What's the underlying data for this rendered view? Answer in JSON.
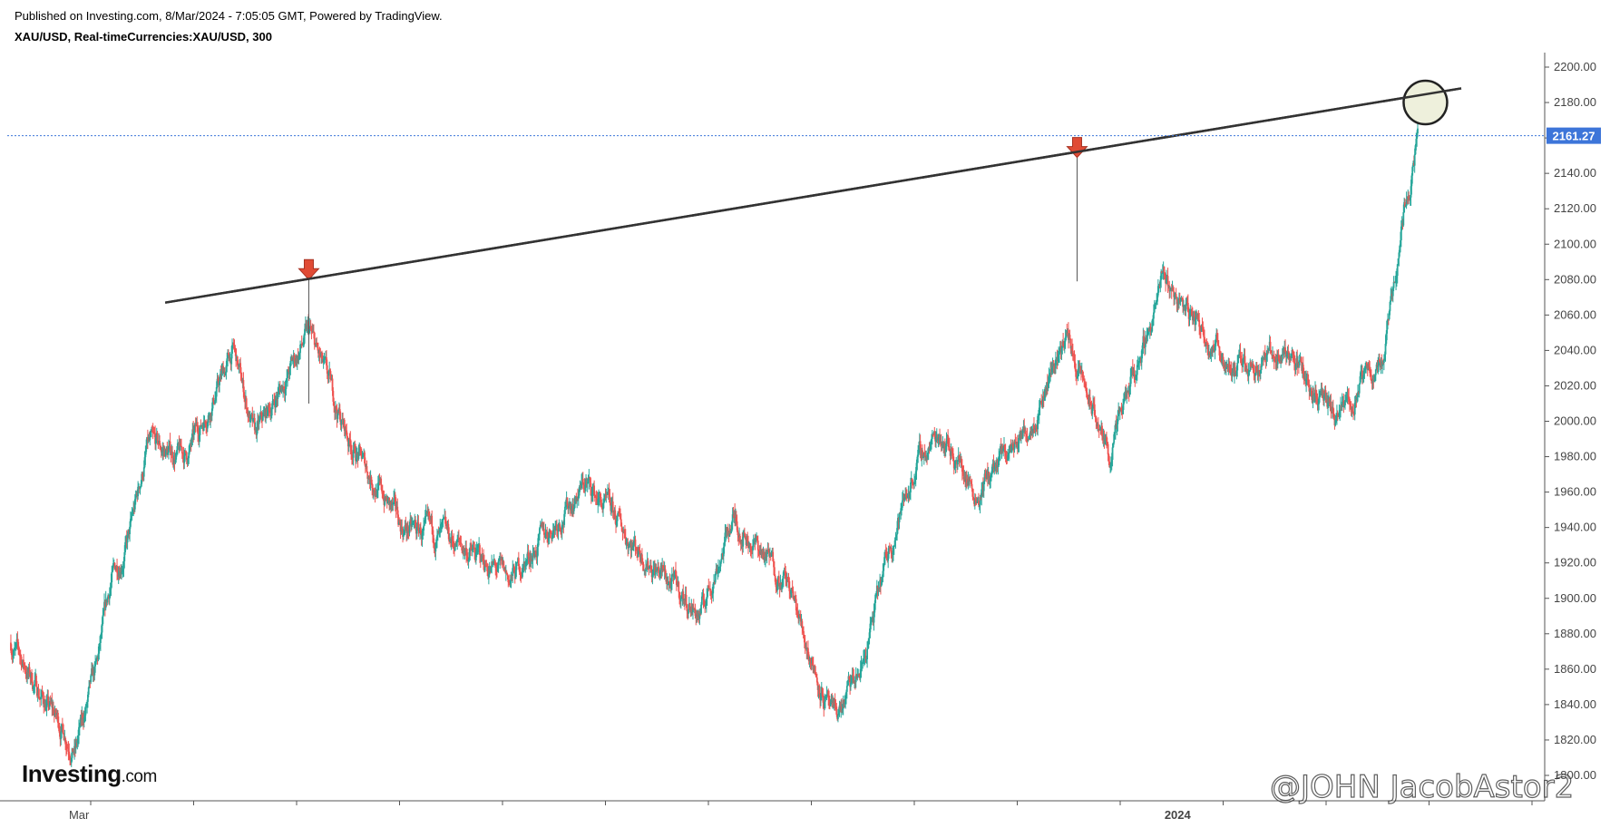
{
  "header": {
    "published": "Published on Investing.com, 8/Mar/2024 - 7:05:05 GMT, Powered by TradingView.",
    "symbol": "XAU/USD, Real-timeCurrencies:XAU/USD, 300"
  },
  "logo": {
    "name": "Investing",
    "suffix": ".com"
  },
  "watermark": "@JOHN JacobAstor2",
  "colors": {
    "up": "#26a69a",
    "down": "#ef5350",
    "trendline": "#333333",
    "arrow": "#e04b35",
    "last_price_badge": "#3d75d9",
    "highlight_circle_fill": "#eef0dc"
  },
  "chart_data": {
    "type": "candlestick",
    "symbol": "XAU/USD",
    "interval": "300",
    "ylim": [
      1800,
      2200
    ],
    "y_ticks": [
      "2200.00",
      "2180.00",
      "2160.00",
      "2140.00",
      "2120.00",
      "2100.00",
      "2080.00",
      "2060.00",
      "2040.00",
      "2020.00",
      "2000.00",
      "1980.00",
      "1960.00",
      "1940.00",
      "1920.00",
      "1900.00",
      "1880.00",
      "1860.00",
      "1840.00",
      "1820.00",
      "1800.00"
    ],
    "x_tick_labels": [
      {
        "label": "Mar",
        "date": "2023-03-01"
      },
      {
        "label": "2024",
        "date": "2024-01-01"
      }
    ],
    "last_price": 2161.27,
    "series": [
      {
        "x": [
          "2023-02-10",
          "2023-02-20",
          "2023-02-28",
          "2023-03-06",
          "2023-03-10",
          "2023-03-15",
          "2023-03-20",
          "2023-03-31",
          "2023-04-13",
          "2023-04-19",
          "2023-05-04",
          "2023-05-15",
          "2023-05-30",
          "2023-06-15",
          "2023-06-29",
          "2023-07-20",
          "2023-08-01",
          "2023-08-21",
          "2023-08-30",
          "2023-09-14",
          "2023-09-27",
          "2023-10-05",
          "2023-10-13",
          "2023-10-20",
          "2023-10-27",
          "2023-11-06",
          "2023-11-20",
          "2023-12-01",
          "2023-12-04",
          "2023-12-13",
          "2023-12-28",
          "2024-01-17",
          "2024-02-01",
          "2024-02-14",
          "2024-02-27",
          "2024-03-04",
          "2024-03-08"
        ],
        "close": [
          1875,
          1840,
          1815,
          1860,
          1910,
          1935,
          1985,
          1980,
          2040,
          1990,
          2050,
          1990,
          1940,
          1930,
          1910,
          1965,
          1935,
          1890,
          1945,
          1910,
          1830,
          1860,
          1930,
          1975,
          1995,
          1960,
          1995,
          2050,
          2030,
          1980,
          2080,
          2030,
          2040,
          2000,
          2035,
          2120,
          2161
        ]
      }
    ],
    "annotations": {
      "trendline": [
        {
          "x": "2023-03-25",
          "y": 2067
        },
        {
          "x": "2024-03-20",
          "y": 2188
        }
      ],
      "resistance_arrows": [
        {
          "x": "2023-05-04",
          "y": 2080
        },
        {
          "x": "2023-12-04",
          "y": 2149
        }
      ],
      "highlight_circle": {
        "x": "2024-03-08",
        "y": 2180
      }
    }
  }
}
